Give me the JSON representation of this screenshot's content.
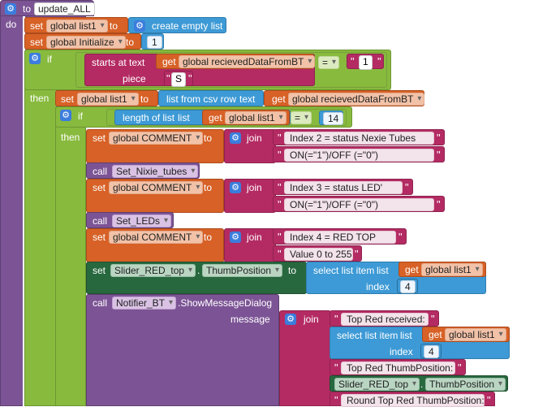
{
  "procedure": {
    "keyword_to": "to",
    "name": "update_ALL",
    "keyword_do": "do"
  },
  "blocks": {
    "set1": {
      "set": "set",
      "var": "global list1",
      "to": "to",
      "action": "create empty list"
    },
    "set2": {
      "set": "set",
      "var": "global Initialize",
      "to": "to",
      "value": "1"
    },
    "if1": {
      "if": "if",
      "then": "then",
      "starts_at": "starts at",
      "text": "text",
      "get": "get",
      "var": "global recievedDataFromBT",
      "op": "=",
      "value": "1",
      "piece": "piece",
      "piece_value": "S"
    },
    "set3": {
      "set": "set",
      "var": "global list1",
      "to": "to",
      "func": "list from csv row",
      "text": "text",
      "get": "get",
      "var2": "global recievedDataFromBT"
    },
    "if2": {
      "if": "if",
      "then": "then",
      "length_of_list": "length of list",
      "list": "list",
      "get": "get",
      "var": "global list1",
      "op": "=",
      "value": "14"
    },
    "comment1": {
      "set": "set",
      "var": "global COMMENT",
      "to": "to",
      "join": "join",
      "line1": "Index 2 = status Nexie Tubes",
      "line2": "ON(=\"1\")/OFF (=\"0\")"
    },
    "call1": {
      "call": "call",
      "proc": "Set_Nixie_tubes"
    },
    "comment2": {
      "set": "set",
      "var": "global COMMENT",
      "to": "to",
      "join": "join",
      "line1": "Index 3 = status LED'",
      "line2": "ON(=\"1\")/OFF (=\"0\")"
    },
    "call2": {
      "call": "call",
      "proc": "Set_LEDs"
    },
    "comment3": {
      "set": "set",
      "var": "global COMMENT",
      "to": "to",
      "join": "join",
      "line1": "Index 4 = RED TOP",
      "line2": "Value 0 to 255"
    },
    "setSlider": {
      "set": "set",
      "component": "Slider_RED_top",
      "prop": "ThumbPosition",
      "to": "to",
      "select": "select list item",
      "list": "list",
      "get": "get",
      "var": "global list1",
      "index": "index",
      "index_value": "4"
    },
    "callNotifier": {
      "call": "call",
      "component": "Notifier_BT",
      "method": ".ShowMessageDialog",
      "message": "message",
      "join": "join",
      "s1": "Top Red received: ",
      "select": "select list item",
      "list": "list",
      "get": "get",
      "var": "global list1",
      "index": "index",
      "index_value": "4",
      "s2": "Top Red ThumbPosition: ",
      "component2": "Slider_RED_top",
      "prop2": "ThumbPosition",
      "s3": "Round Top Red ThumbPosition: "
    }
  }
}
